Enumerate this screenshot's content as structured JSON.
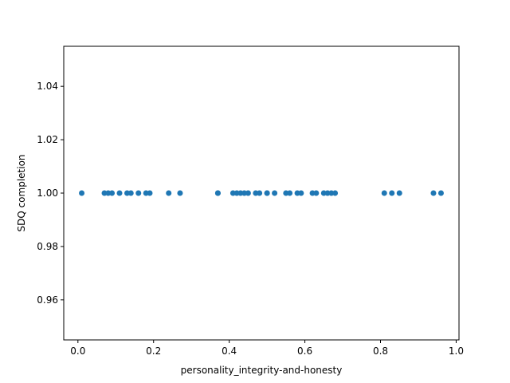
{
  "chart_data": {
    "type": "scatter",
    "title": "",
    "xlabel": "personality_integrity-and-honesty",
    "ylabel": "SDQ completion",
    "xlim": [
      -0.0375,
      1.0075
    ],
    "ylim": [
      0.945,
      1.055
    ],
    "xticks": [
      0.0,
      0.2,
      0.4,
      0.6,
      0.8,
      1.0
    ],
    "xtick_labels": [
      "0.0",
      "0.2",
      "0.4",
      "0.6",
      "0.8",
      "1.0"
    ],
    "yticks": [
      0.96,
      0.98,
      1.0,
      1.02,
      1.04
    ],
    "ytick_labels": [
      "0.96",
      "0.98",
      "1.00",
      "1.02",
      "1.04"
    ],
    "grid": false,
    "marker_color": "#1f77b4",
    "series": [
      {
        "x": [
          0.01,
          0.07,
          0.08,
          0.09,
          0.11,
          0.13,
          0.14,
          0.16,
          0.18,
          0.19,
          0.24,
          0.27,
          0.37,
          0.37,
          0.41,
          0.42,
          0.43,
          0.44,
          0.45,
          0.47,
          0.48,
          0.5,
          0.5,
          0.52,
          0.55,
          0.56,
          0.58,
          0.59,
          0.62,
          0.63,
          0.65,
          0.66,
          0.67,
          0.68,
          0.81,
          0.83,
          0.85,
          0.94,
          0.96
        ],
        "y": [
          1.0,
          1.0,
          1.0,
          1.0,
          1.0,
          1.0,
          1.0,
          1.0,
          1.0,
          1.0,
          1.0,
          1.0,
          1.0,
          1.0,
          1.0,
          1.0,
          1.0,
          1.0,
          1.0,
          1.0,
          1.0,
          1.0,
          1.0,
          1.0,
          1.0,
          1.0,
          1.0,
          1.0,
          1.0,
          1.0,
          1.0,
          1.0,
          1.0,
          1.0,
          1.0,
          1.0,
          1.0,
          1.0,
          1.0
        ]
      }
    ]
  }
}
